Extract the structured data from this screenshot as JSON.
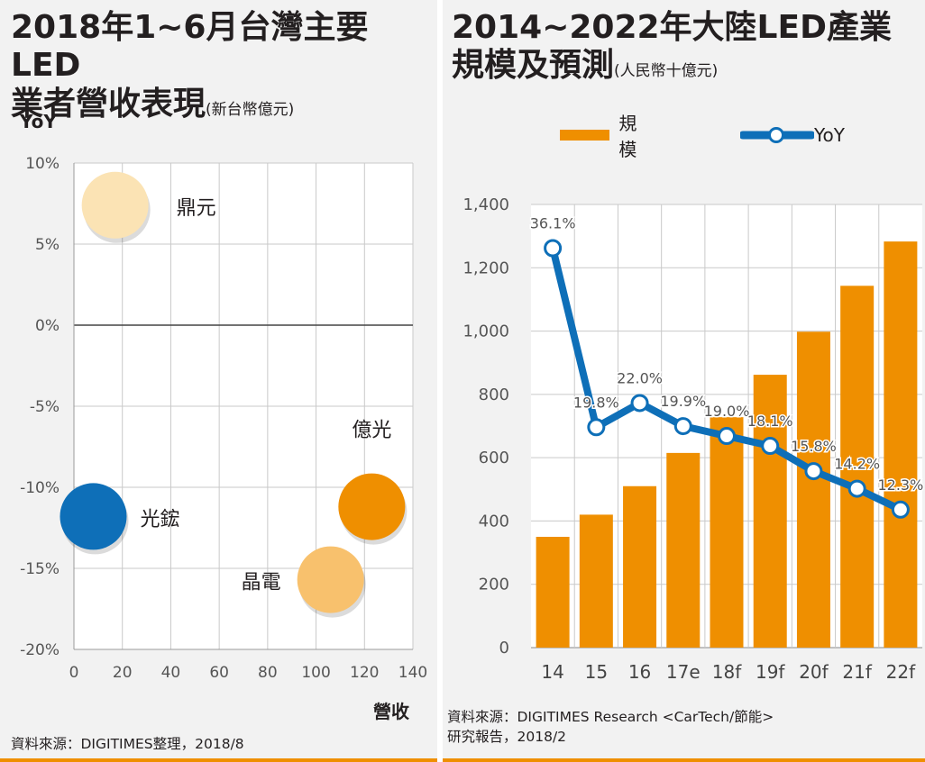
{
  "left": {
    "title_line1": "2018年1~6月台灣主要LED",
    "title_line2": "業者營收表現",
    "title_unit": "(新台幣億元)",
    "source": "資料來源：DIGITIMES整理，2018/8",
    "chart_data": {
      "type": "bubble",
      "xlabel": "營收",
      "ylabel": "YoY",
      "xlim": [
        0,
        140
      ],
      "ylim": [
        -20,
        10
      ],
      "x_ticks": [
        "0",
        "20",
        "40",
        "60",
        "80",
        "100",
        "120",
        "140"
      ],
      "y_ticks": [
        "10%",
        "5%",
        "0%",
        "-5%",
        "-10%",
        "-15%",
        "-20%"
      ],
      "grid": true,
      "points": [
        {
          "name": "鼎元",
          "x": 17,
          "y": 7.4,
          "color": "#fbe3b4"
        },
        {
          "name": "億光",
          "x": 123,
          "y": -11.2,
          "color": "#ef8f00"
        },
        {
          "name": "光鋐",
          "x": 8,
          "y": -11.8,
          "color": "#0e6fb8"
        },
        {
          "name": "晶電",
          "x": 106,
          "y": -15.7,
          "color": "#f8c16d"
        }
      ]
    }
  },
  "right": {
    "title_line1": "2014~2022年大陸LED產業",
    "title_line2": "規模及預測",
    "title_unit": "(人民幣十億元)",
    "legend_bar": "規模",
    "legend_line": "YoY",
    "source_line1": "資料來源：DIGITIMES Research <CarTech/節能>",
    "source_line2": "研究報告，2018/2",
    "chart_data": {
      "type": "bar+line",
      "categories": [
        "14",
        "15",
        "16",
        "17e",
        "18f",
        "19f",
        "20f",
        "21f",
        "22f"
      ],
      "ylim": [
        0,
        1400
      ],
      "y_ticks": [
        "0",
        "200",
        "400",
        "600",
        "800",
        "1,000",
        "1,200",
        "1,400"
      ],
      "grid": true,
      "legend_position": "top",
      "series": [
        {
          "name": "規模",
          "type": "bar",
          "color": "#ef8f00",
          "values": [
            350,
            420,
            510,
            615,
            728,
            862,
            998,
            1143,
            1283
          ]
        },
        {
          "name": "YoY",
          "type": "line",
          "color": "#0e6fb8",
          "values": [
            36.1,
            19.8,
            22.0,
            19.9,
            19.0,
            18.1,
            15.8,
            14.2,
            12.3
          ],
          "labels": [
            "36.1%",
            "19.8%",
            "22.0%",
            "19.9%",
            "19.0%",
            "18.1%",
            "15.8%",
            "14.2%",
            "12.3%"
          ]
        }
      ]
    }
  }
}
